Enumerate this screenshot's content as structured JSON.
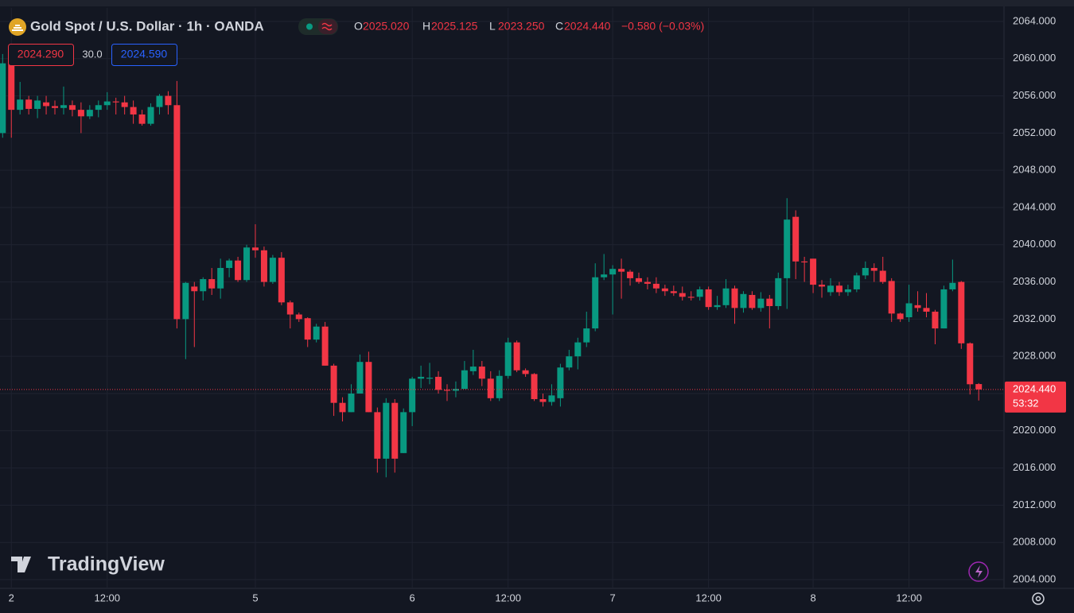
{
  "chart_data": {
    "type": "candlestick",
    "title": "Gold Spot / U.S. Dollar · 1h · OANDA",
    "x": [
      0,
      1,
      2,
      3,
      4,
      5,
      6,
      7,
      8,
      9,
      10,
      11,
      12,
      13,
      14,
      15,
      16,
      17,
      18,
      19,
      20,
      21,
      22,
      23,
      24,
      25,
      26,
      27,
      28,
      29,
      30,
      31,
      32,
      33,
      34,
      35,
      36,
      37,
      38,
      39,
      40,
      41,
      42,
      43,
      44,
      45,
      46,
      47,
      48,
      49,
      50,
      51,
      52,
      53,
      54,
      55,
      56,
      57,
      58,
      59,
      60,
      61,
      62,
      63,
      64,
      65,
      66,
      67,
      68,
      69,
      70,
      71,
      72,
      73,
      74,
      75,
      76,
      77,
      78,
      79,
      80,
      81,
      82,
      83,
      84,
      85,
      86,
      87,
      88,
      89,
      90,
      91,
      92,
      93,
      94,
      95,
      96,
      97,
      98,
      99,
      100,
      101,
      102,
      103,
      104,
      105,
      106,
      107,
      108,
      109,
      110,
      111,
      112
    ],
    "open": [
      2052,
      2059.5,
      2054.5,
      2055.6,
      2054.6,
      2055.3,
      2054.9,
      2054.7,
      2055,
      2054.5,
      2053.8,
      2054.5,
      2055,
      2055.4,
      2055.3,
      2054.8,
      2054,
      2053,
      2054.8,
      2056,
      2055,
      2032,
      2035.5,
      2035,
      2036.3,
      2035.3,
      2037.5,
      2038.3,
      2036.2,
      2039.7,
      2039.4,
      2036,
      2038.6,
      2033.8,
      2032.5,
      2032.1,
      2029.8,
      2031.2,
      2027,
      2023,
      2022,
      2024,
      2027.4,
      2022,
      2017,
      2023,
      2017.6,
      2022,
      2025.6,
      2025.6,
      2025.8,
      2024.4,
      2024.3,
      2024.5,
      2026.4,
      2026.9,
      2025.6,
      2023.5,
      2025.9,
      2029.5,
      2026.5,
      2026.1,
      2023.4,
      2023.1,
      2023.5,
      2026.8,
      2028,
      2029.5,
      2031,
      2036.5,
      2036.8,
      2037.4,
      2037.1,
      2036.4,
      2036,
      2035.8,
      2035.3,
      2035,
      2034.8,
      2034.4,
      2034.4,
      2035.2,
      2033.3,
      2033.5,
      2035.3,
      2033.2,
      2034.6,
      2033.2,
      2034.2,
      2033.4,
      2036.4,
      2043,
      2038.2,
      2038.5,
      2035.7,
      2034.9,
      2035.6,
      2034.9,
      2035.2,
      2036.7,
      2037.5,
      2037.2,
      2036.1,
      2032.6,
      2032.2,
      2033.5,
      2033.2,
      2032.8,
      2031,
      2035.2,
      2036,
      2029.4,
      2025.02
    ],
    "high": [
      2060.5,
      2060,
      2057.5,
      2056,
      2056,
      2056,
      2055.5,
      2057,
      2055.5,
      2055.3,
      2055,
      2055.5,
      2056.4,
      2055.8,
      2056,
      2055.5,
      2054.5,
      2055.2,
      2056.2,
      2056.5,
      2057.6,
      2036,
      2036,
      2036.5,
      2037.5,
      2038.5,
      2038.5,
      2038.7,
      2040,
      2042.2,
      2039.8,
      2038.9,
      2039.2,
      2034,
      2032.7,
      2032.2,
      2031.5,
      2031.7,
      2027.2,
      2023.6,
      2025,
      2028.2,
      2028.5,
      2022.5,
      2023.5,
      2023.4,
      2022.4,
      2025.8,
      2027,
      2027.3,
      2026.4,
      2025,
      2025.3,
      2027.5,
      2028.7,
      2027.5,
      2026.4,
      2026.5,
      2030,
      2029.7,
      2026.7,
      2026.2,
      2024,
      2025,
      2027.2,
      2028.7,
      2030,
      2032.8,
      2038,
      2039,
      2037.8,
      2038.5,
      2037.3,
      2037,
      2036.5,
      2036.5,
      2035.7,
      2035.6,
      2035.5,
      2035,
      2035.5,
      2035.5,
      2034.5,
      2036.3,
      2035.6,
      2035,
      2035,
      2034.9,
      2034.6,
      2037,
      2045,
      2043.7,
      2038.7,
      2038.5,
      2036.2,
      2036.4,
      2036,
      2035.7,
      2037,
      2038.2,
      2038,
      2038.7,
      2036.4,
      2032.7,
      2035.7,
      2035,
      2034.8,
      2033,
      2035.6,
      2038.4,
      2036.1,
      2029.5,
      2025.125
    ],
    "low": [
      2051.5,
      2051.5,
      2054,
      2054,
      2053.6,
      2054,
      2054,
      2054,
      2053.8,
      2052,
      2053.5,
      2053.7,
      2054.5,
      2054,
      2054,
      2053,
      2052.8,
      2052.8,
      2054,
      2054,
      2031,
      2027.7,
      2029,
      2034,
      2034.6,
      2034.2,
      2036.5,
      2036,
      2036,
      2038.6,
      2035.5,
      2035.8,
      2033.5,
      2031,
      2031.7,
      2029,
      2029.5,
      2027,
      2021.6,
      2021,
      2022,
      2024,
      2022,
      2015.5,
      2015,
      2015.5,
      2017.6,
      2020.5,
      2024.6,
      2025,
      2024,
      2023.2,
      2023.6,
      2024.5,
      2026,
      2024.8,
      2023.2,
      2023.2,
      2025.6,
      2026.3,
      2025.8,
      2023.2,
      2022.6,
      2022.7,
      2022.6,
      2026.5,
      2026.6,
      2029,
      2030.7,
      2036.2,
      2032.5,
      2034.2,
      2035.6,
      2035.8,
      2035.2,
      2034.8,
      2034.5,
      2034.5,
      2034,
      2034,
      2034,
      2033,
      2033,
      2033.2,
      2031.5,
      2032.7,
      2033,
      2032.8,
      2031,
      2033,
      2033.1,
      2036.3,
      2036,
      2034.8,
      2034.3,
      2034.5,
      2034.5,
      2034.5,
      2034.9,
      2036.3,
      2036,
      2035.8,
      2031.7,
      2031.7,
      2031.7,
      2032.8,
      2032.2,
      2029.3,
      2031,
      2035,
      2028.8,
      2023.9,
      2023.25
    ],
    "close": [
      2059.5,
      2054.5,
      2055.6,
      2054.6,
      2055.5,
      2054.9,
      2054.7,
      2055,
      2054.5,
      2053.8,
      2054.5,
      2055,
      2055.4,
      2055.3,
      2054.8,
      2054,
      2053,
      2054.8,
      2056,
      2055,
      2032,
      2035.9,
      2035,
      2036.3,
      2035.3,
      2037.5,
      2038.3,
      2036.2,
      2039.7,
      2039.4,
      2036,
      2038.6,
      2033.8,
      2032.5,
      2032,
      2029.8,
      2031.2,
      2027,
      2023,
      2022,
      2024,
      2027.4,
      2022,
      2017,
      2023,
      2017,
      2022,
      2025.6,
      2025.8,
      2025.7,
      2024.4,
      2024.3,
      2024.5,
      2026.5,
      2026.9,
      2025.6,
      2023.5,
      2025.9,
      2029.5,
      2026.5,
      2026.1,
      2023.4,
      2023.1,
      2023.8,
      2026.8,
      2028,
      2029.5,
      2031,
      2036.5,
      2036.8,
      2037.4,
      2037.1,
      2036.4,
      2036,
      2035.8,
      2035.3,
      2035,
      2034.8,
      2034.4,
      2034.3,
      2035.2,
      2033.3,
      2033.5,
      2035.3,
      2033.2,
      2034.7,
      2033.2,
      2034.2,
      2033.4,
      2036.4,
      2042.7,
      2038.2,
      2038.1,
      2035.7,
      2035.5,
      2035.6,
      2034.9,
      2035.2,
      2036.7,
      2037.5,
      2037.2,
      2036,
      2032.6,
      2032,
      2033.7,
      2033.2,
      2032.8,
      2031,
      2035.2,
      2035.9,
      2029.4,
      2025,
      2024.44
    ],
    "up_color": "#089981",
    "down_color": "#f23645",
    "xlim": [
      -0.3,
      114.9
    ],
    "xticks": [
      {
        "value": 1,
        "label": "2"
      },
      {
        "value": 12,
        "label": "12:00"
      },
      {
        "value": 29,
        "label": "5"
      },
      {
        "value": 47,
        "label": "6"
      },
      {
        "value": 58,
        "label": "12:00"
      },
      {
        "value": 70,
        "label": "7"
      },
      {
        "value": 81,
        "label": "12:00"
      },
      {
        "value": 93,
        "label": "8"
      },
      {
        "value": 104,
        "label": "12:00"
      }
    ],
    "ylim": [
      2003.06,
      2065.45
    ],
    "yticks": [
      {
        "value": 2004,
        "label": "2004.000"
      },
      {
        "value": 2008,
        "label": "2008.000"
      },
      {
        "value": 2012,
        "label": "2012.000"
      },
      {
        "value": 2016,
        "label": "2016.000"
      },
      {
        "value": 2020,
        "label": "2020.000"
      },
      {
        "value": 2024,
        "label": "2024.000"
      },
      {
        "value": 2028,
        "label": "2028.000"
      },
      {
        "value": 2032,
        "label": "2032.000"
      },
      {
        "value": 2036,
        "label": "2036.000"
      },
      {
        "value": 2040,
        "label": "2040.000"
      },
      {
        "value": 2044,
        "label": "2044.000"
      },
      {
        "value": 2048,
        "label": "2048.000"
      },
      {
        "value": 2052,
        "label": "2052.000"
      },
      {
        "value": 2056,
        "label": "2056.000"
      },
      {
        "value": 2060,
        "label": "2060.000"
      },
      {
        "value": 2064,
        "label": "2064.000"
      }
    ],
    "grid": true,
    "last_price": {
      "value": 2024.44,
      "label": "2024.440"
    },
    "countdown": "53:32"
  },
  "header": {
    "ohlc": [
      {
        "key": "O",
        "value": "2025.020"
      },
      {
        "key": "H",
        "value": "2025.125"
      },
      {
        "key": "L",
        "value": "2023.250"
      },
      {
        "key": "C",
        "value": "2024.440"
      }
    ],
    "change": "−0.580 (−0.03%)",
    "bid": "2024.290",
    "spread": "30.0",
    "ask": "2024.590"
  },
  "watermark": "TradingView"
}
